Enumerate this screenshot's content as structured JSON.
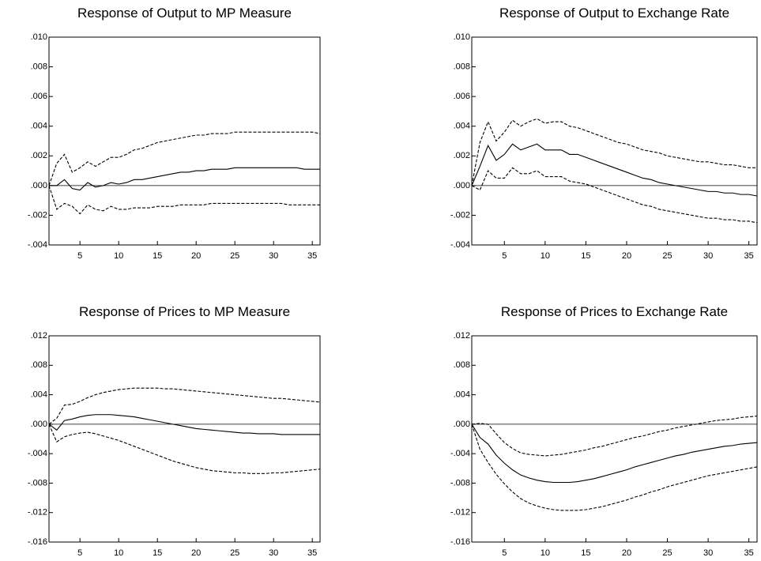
{
  "chart_data": [
    {
      "type": "line",
      "title": "Response of Output to MP Measure",
      "x": [
        1,
        2,
        3,
        4,
        5,
        6,
        7,
        8,
        9,
        10,
        11,
        12,
        13,
        14,
        15,
        16,
        17,
        18,
        19,
        20,
        21,
        22,
        23,
        24,
        25,
        26,
        27,
        28,
        29,
        30,
        31,
        32,
        33,
        34,
        35,
        36
      ],
      "xlim": [
        1,
        36
      ],
      "xticks": [
        5,
        10,
        15,
        20,
        25,
        30,
        35
      ],
      "ylim": [
        -0.004,
        0.01
      ],
      "yticks": [
        {
          "value": 0.01,
          "label": ".010"
        },
        {
          "value": 0.008,
          "label": ".008"
        },
        {
          "value": 0.006,
          "label": ".006"
        },
        {
          "value": 0.004,
          "label": ".004"
        },
        {
          "value": 0.002,
          "label": ".002"
        },
        {
          "value": 0,
          "label": ".000"
        },
        {
          "value": -0.002,
          "label": "-.002"
        },
        {
          "value": -0.004,
          "label": "-.004"
        }
      ],
      "series": [
        {
          "color": "#000000",
          "style": "solid",
          "values": [
            0,
            0,
            0.0004,
            -0.0002,
            -0.0003,
            0.0002,
            -0.0001,
            0,
            0.0002,
            0.0001,
            0.0002,
            0.0004,
            0.0004,
            0.0005,
            0.0006,
            0.0007,
            0.0008,
            0.0009,
            0.0009,
            0.001,
            0.001,
            0.0011,
            0.0011,
            0.0011,
            0.0012,
            0.0012,
            0.0012,
            0.0012,
            0.0012,
            0.0012,
            0.0012,
            0.0012,
            0.0012,
            0.0011,
            0.0011,
            0.0011
          ]
        },
        {
          "color": "#000000",
          "style": "dashed",
          "values": [
            0,
            0.0015,
            0.0021,
            0.0009,
            0.0012,
            0.0016,
            0.0013,
            0.0016,
            0.0019,
            0.0019,
            0.0021,
            0.0024,
            0.0025,
            0.0027,
            0.0029,
            0.003,
            0.0031,
            0.0032,
            0.0033,
            0.0034,
            0.0034,
            0.0035,
            0.0035,
            0.0035,
            0.0036,
            0.0036,
            0.0036,
            0.0036,
            0.0036,
            0.0036,
            0.0036,
            0.0036,
            0.0036,
            0.0036,
            0.0036,
            0.0035
          ]
        },
        {
          "color": "#000000",
          "style": "dashed",
          "values": [
            0,
            -0.0016,
            -0.0012,
            -0.0014,
            -0.0019,
            -0.0013,
            -0.0016,
            -0.0017,
            -0.0014,
            -0.0016,
            -0.0016,
            -0.0015,
            -0.0015,
            -0.0015,
            -0.0014,
            -0.0014,
            -0.0014,
            -0.0013,
            -0.0013,
            -0.0013,
            -0.0013,
            -0.0012,
            -0.0012,
            -0.0012,
            -0.0012,
            -0.0012,
            -0.0012,
            -0.0012,
            -0.0012,
            -0.0012,
            -0.0012,
            -0.0013,
            -0.0013,
            -0.0013,
            -0.0013,
            -0.0013
          ]
        }
      ]
    },
    {
      "type": "line",
      "title": "Response of Output to Exchange Rate",
      "x": [
        1,
        2,
        3,
        4,
        5,
        6,
        7,
        8,
        9,
        10,
        11,
        12,
        13,
        14,
        15,
        16,
        17,
        18,
        19,
        20,
        21,
        22,
        23,
        24,
        25,
        26,
        27,
        28,
        29,
        30,
        31,
        32,
        33,
        34,
        35,
        36
      ],
      "xlim": [
        1,
        36
      ],
      "xticks": [
        5,
        10,
        15,
        20,
        25,
        30,
        35
      ],
      "ylim": [
        -0.004,
        0.01
      ],
      "yticks": [
        {
          "value": 0.01,
          "label": ".010"
        },
        {
          "value": 0.008,
          "label": ".008"
        },
        {
          "value": 0.006,
          "label": ".006"
        },
        {
          "value": 0.004,
          "label": ".004"
        },
        {
          "value": 0.002,
          "label": ".002"
        },
        {
          "value": 0,
          "label": ".000"
        },
        {
          "value": -0.002,
          "label": "-.002"
        },
        {
          "value": -0.004,
          "label": "-.004"
        }
      ],
      "series": [
        {
          "color": "#000000",
          "style": "solid",
          "values": [
            0,
            0.0013,
            0.0027,
            0.0017,
            0.0021,
            0.0028,
            0.0024,
            0.0026,
            0.0028,
            0.0024,
            0.0024,
            0.0024,
            0.0021,
            0.0021,
            0.0019,
            0.0017,
            0.0015,
            0.0013,
            0.0011,
            0.0009,
            0.0007,
            0.0005,
            0.0004,
            0.0002,
            0.0001,
            0,
            -0.0001,
            -0.0002,
            -0.0003,
            -0.0004,
            -0.0004,
            -0.0005,
            -0.0005,
            -0.0006,
            -0.0006,
            -0.0007
          ]
        },
        {
          "color": "#000000",
          "style": "dashed",
          "values": [
            0,
            0.0029,
            0.0043,
            0.003,
            0.0036,
            0.0044,
            0.004,
            0.0043,
            0.0045,
            0.0042,
            0.0043,
            0.0043,
            0.004,
            0.0039,
            0.0037,
            0.0035,
            0.0033,
            0.0031,
            0.0029,
            0.0028,
            0.0026,
            0.0024,
            0.0023,
            0.0022,
            0.002,
            0.0019,
            0.0018,
            0.0017,
            0.0016,
            0.0016,
            0.0015,
            0.0014,
            0.0014,
            0.0013,
            0.0012,
            0.0012
          ]
        },
        {
          "color": "#000000",
          "style": "dashed",
          "values": [
            0,
            -0.0003,
            0.001,
            0.0005,
            0.0005,
            0.0012,
            0.0008,
            0.0008,
            0.001,
            0.0006,
            0.0006,
            0.0006,
            0.0003,
            0.0002,
            0.0001,
            -0.0001,
            -0.0003,
            -0.0005,
            -0.0007,
            -0.0009,
            -0.0011,
            -0.0013,
            -0.0014,
            -0.0016,
            -0.0017,
            -0.0018,
            -0.0019,
            -0.002,
            -0.0021,
            -0.0022,
            -0.0022,
            -0.0023,
            -0.0023,
            -0.0024,
            -0.0024,
            -0.0025
          ]
        }
      ]
    },
    {
      "type": "line",
      "title": "Response of Prices to MP Measure",
      "x": [
        1,
        2,
        3,
        4,
        5,
        6,
        7,
        8,
        9,
        10,
        11,
        12,
        13,
        14,
        15,
        16,
        17,
        18,
        19,
        20,
        21,
        22,
        23,
        24,
        25,
        26,
        27,
        28,
        29,
        30,
        31,
        32,
        33,
        34,
        35,
        36
      ],
      "xlim": [
        1,
        36
      ],
      "xticks": [
        5,
        10,
        15,
        20,
        25,
        30,
        35
      ],
      "ylim": [
        -0.016,
        0.012
      ],
      "yticks": [
        {
          "value": 0.012,
          "label": ".012"
        },
        {
          "value": 0.008,
          "label": ".008"
        },
        {
          "value": 0.004,
          "label": ".004"
        },
        {
          "value": 0,
          "label": ".000"
        },
        {
          "value": -0.004,
          "label": "-.004"
        },
        {
          "value": -0.008,
          "label": "-.008"
        },
        {
          "value": -0.012,
          "label": "-.012"
        },
        {
          "value": -0.016,
          "label": "-.016"
        }
      ],
      "series": [
        {
          "color": "#000000",
          "style": "solid",
          "values": [
            0,
            -0.0008,
            0.0005,
            0.0007,
            0.001,
            0.0012,
            0.0013,
            0.0013,
            0.0013,
            0.0012,
            0.0011,
            0.001,
            0.0008,
            0.0006,
            0.0004,
            0.0002,
            0,
            -0.0002,
            -0.0004,
            -0.0006,
            -0.0007,
            -0.0008,
            -0.0009,
            -0.001,
            -0.0011,
            -0.0012,
            -0.0012,
            -0.0013,
            -0.0013,
            -0.0013,
            -0.0014,
            -0.0014,
            -0.0014,
            -0.0014,
            -0.0014,
            -0.0014
          ]
        },
        {
          "color": "#000000",
          "style": "dashed",
          "values": [
            0,
            0.0008,
            0.0026,
            0.0027,
            0.0031,
            0.0036,
            0.004,
            0.0043,
            0.0045,
            0.0047,
            0.0048,
            0.0049,
            0.0049,
            0.0049,
            0.0049,
            0.0048,
            0.0048,
            0.0047,
            0.0046,
            0.0045,
            0.0044,
            0.0043,
            0.0042,
            0.0041,
            0.004,
            0.0039,
            0.0038,
            0.0037,
            0.0036,
            0.0035,
            0.0035,
            0.0034,
            0.0033,
            0.0032,
            0.0031,
            0.003
          ]
        },
        {
          "color": "#000000",
          "style": "dashed",
          "values": [
            0,
            -0.0024,
            -0.0017,
            -0.0014,
            -0.0012,
            -0.0011,
            -0.0013,
            -0.0016,
            -0.0019,
            -0.0022,
            -0.0026,
            -0.003,
            -0.0034,
            -0.0038,
            -0.0042,
            -0.0046,
            -0.005,
            -0.0053,
            -0.0056,
            -0.0059,
            -0.0061,
            -0.0063,
            -0.0064,
            -0.0065,
            -0.0066,
            -0.0066,
            -0.0067,
            -0.0067,
            -0.0067,
            -0.0066,
            -0.0066,
            -0.0065,
            -0.0064,
            -0.0063,
            -0.0062,
            -0.0061
          ]
        }
      ]
    },
    {
      "type": "line",
      "title": "Response of Prices to Exchange Rate",
      "x": [
        1,
        2,
        3,
        4,
        5,
        6,
        7,
        8,
        9,
        10,
        11,
        12,
        13,
        14,
        15,
        16,
        17,
        18,
        19,
        20,
        21,
        22,
        23,
        24,
        25,
        26,
        27,
        28,
        29,
        30,
        31,
        32,
        33,
        34,
        35,
        36
      ],
      "xlim": [
        1,
        36
      ],
      "xticks": [
        5,
        10,
        15,
        20,
        25,
        30,
        35
      ],
      "ylim": [
        -0.016,
        0.012
      ],
      "yticks": [
        {
          "value": 0.012,
          "label": ".012"
        },
        {
          "value": 0.008,
          "label": ".008"
        },
        {
          "value": 0.004,
          "label": ".004"
        },
        {
          "value": 0,
          "label": ".000"
        },
        {
          "value": -0.004,
          "label": "-.004"
        },
        {
          "value": -0.008,
          "label": "-.008"
        },
        {
          "value": -0.012,
          "label": "-.012"
        },
        {
          "value": -0.016,
          "label": "-.016"
        }
      ],
      "series": [
        {
          "color": "#000000",
          "style": "solid",
          "values": [
            0,
            -0.0018,
            -0.0027,
            -0.0042,
            -0.0053,
            -0.0062,
            -0.0069,
            -0.0073,
            -0.0076,
            -0.0078,
            -0.0079,
            -0.0079,
            -0.0079,
            -0.0078,
            -0.0076,
            -0.0074,
            -0.0071,
            -0.0068,
            -0.0065,
            -0.0062,
            -0.0058,
            -0.0055,
            -0.0052,
            -0.0049,
            -0.0046,
            -0.0043,
            -0.0041,
            -0.0038,
            -0.0036,
            -0.0034,
            -0.0032,
            -0.003,
            -0.0029,
            -0.0027,
            -0.0026,
            -0.0025
          ]
        },
        {
          "color": "#000000",
          "style": "dashed",
          "values": [
            0,
            0.0001,
            0,
            -0.0013,
            -0.0025,
            -0.0033,
            -0.0039,
            -0.0041,
            -0.0042,
            -0.0043,
            -0.0042,
            -0.0041,
            -0.0039,
            -0.0037,
            -0.0035,
            -0.0032,
            -0.003,
            -0.0027,
            -0.0024,
            -0.0021,
            -0.0018,
            -0.0016,
            -0.0013,
            -0.001,
            -0.0008,
            -0.0005,
            -0.0003,
            -0.0001,
            0.0001,
            0.0003,
            0.0005,
            0.0006,
            0.0007,
            0.0009,
            0.001,
            0.0011
          ]
        },
        {
          "color": "#000000",
          "style": "dashed",
          "values": [
            0,
            -0.0034,
            -0.0052,
            -0.0068,
            -0.0081,
            -0.0092,
            -0.0101,
            -0.0107,
            -0.0111,
            -0.0114,
            -0.0116,
            -0.0117,
            -0.0117,
            -0.0117,
            -0.0116,
            -0.0114,
            -0.0112,
            -0.0109,
            -0.0106,
            -0.0103,
            -0.0099,
            -0.0096,
            -0.0092,
            -0.0089,
            -0.0085,
            -0.0082,
            -0.0079,
            -0.0076,
            -0.0073,
            -0.007,
            -0.0068,
            -0.0066,
            -0.0064,
            -0.0062,
            -0.006,
            -0.0058
          ]
        }
      ]
    }
  ]
}
